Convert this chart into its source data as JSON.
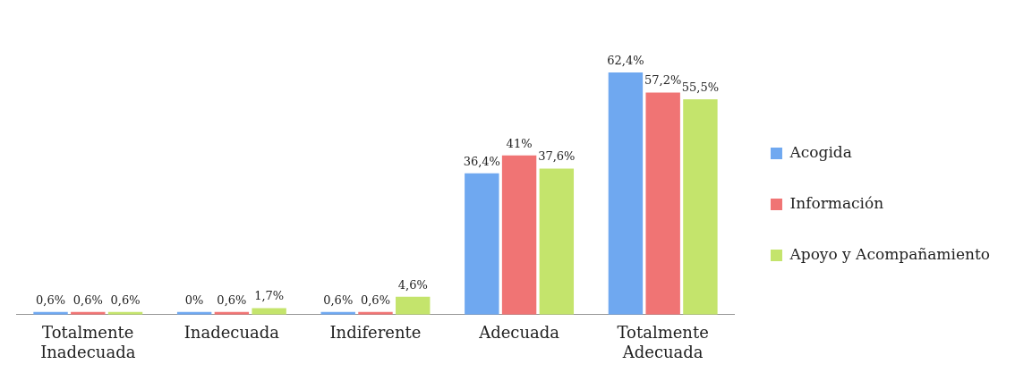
{
  "chart_data": {
    "type": "bar",
    "categories": [
      "Totalmente Inadecuada",
      "Inadecuada",
      "Indiferente",
      "Adecuada",
      "Totalmente Adecuada"
    ],
    "series": [
      {
        "name": "Acogida",
        "color": "#6fa8f0",
        "values": [
          0.6,
          0,
          0.6,
          36.4,
          62.4
        ],
        "value_labels": [
          "0,6%",
          "0%",
          "0,6%",
          "36,4%",
          "62,4%"
        ]
      },
      {
        "name": "Información",
        "color": "#f07474",
        "values": [
          0.6,
          0.6,
          0.6,
          41,
          57.2
        ],
        "value_labels": [
          "0,6%",
          "0,6%",
          "0,6%",
          "41%",
          "57,2%"
        ]
      },
      {
        "name": "Apoyo y Acompañamiento",
        "color": "#c4e46c",
        "values": [
          0.6,
          1.7,
          4.6,
          37.6,
          55.5
        ],
        "value_labels": [
          "0,6%",
          "1,7%",
          "4,6%",
          "37,6%",
          "55,5%"
        ]
      }
    ],
    "legend": "right",
    "grid": false
  }
}
